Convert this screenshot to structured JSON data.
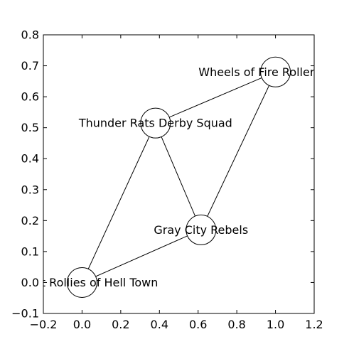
{
  "chart_data": {
    "type": "network",
    "xlim": [
      -0.2,
      1.2
    ],
    "ylim": [
      -0.1,
      0.8
    ],
    "x_ticks": [
      -0.2,
      0.0,
      0.2,
      0.4,
      0.6,
      0.8,
      1.0,
      1.2
    ],
    "y_ticks": [
      -0.1,
      0.0,
      0.1,
      0.2,
      0.3,
      0.4,
      0.5,
      0.6,
      0.7,
      0.8
    ],
    "x_tick_labels": [
      "−0.2",
      "0.0",
      "0.2",
      "0.4",
      "0.6",
      "0.8",
      "1.0",
      "1.2"
    ],
    "y_tick_labels": [
      "−0.1",
      "0.0",
      "0.1",
      "0.2",
      "0.3",
      "0.4",
      "0.5",
      "0.6",
      "0.7",
      "0.8"
    ],
    "nodes": [
      {
        "id": "n1",
        "label": "Wheels of Fire Roller Derby",
        "x": 1.0,
        "y": 0.68
      },
      {
        "id": "n2",
        "label": "Thunder Rats Derby Squad",
        "x": 0.38,
        "y": 0.515
      },
      {
        "id": "n3",
        "label": "Gray City Rebels",
        "x": 0.615,
        "y": 0.17
      },
      {
        "id": "n4",
        "label": "Hellcat Rollies of Hell Town",
        "x": 0.0,
        "y": 0.0
      }
    ],
    "edges": [
      [
        "n1",
        "n2"
      ],
      [
        "n1",
        "n3"
      ],
      [
        "n2",
        "n3"
      ],
      [
        "n2",
        "n4"
      ],
      [
        "n3",
        "n4"
      ]
    ]
  }
}
